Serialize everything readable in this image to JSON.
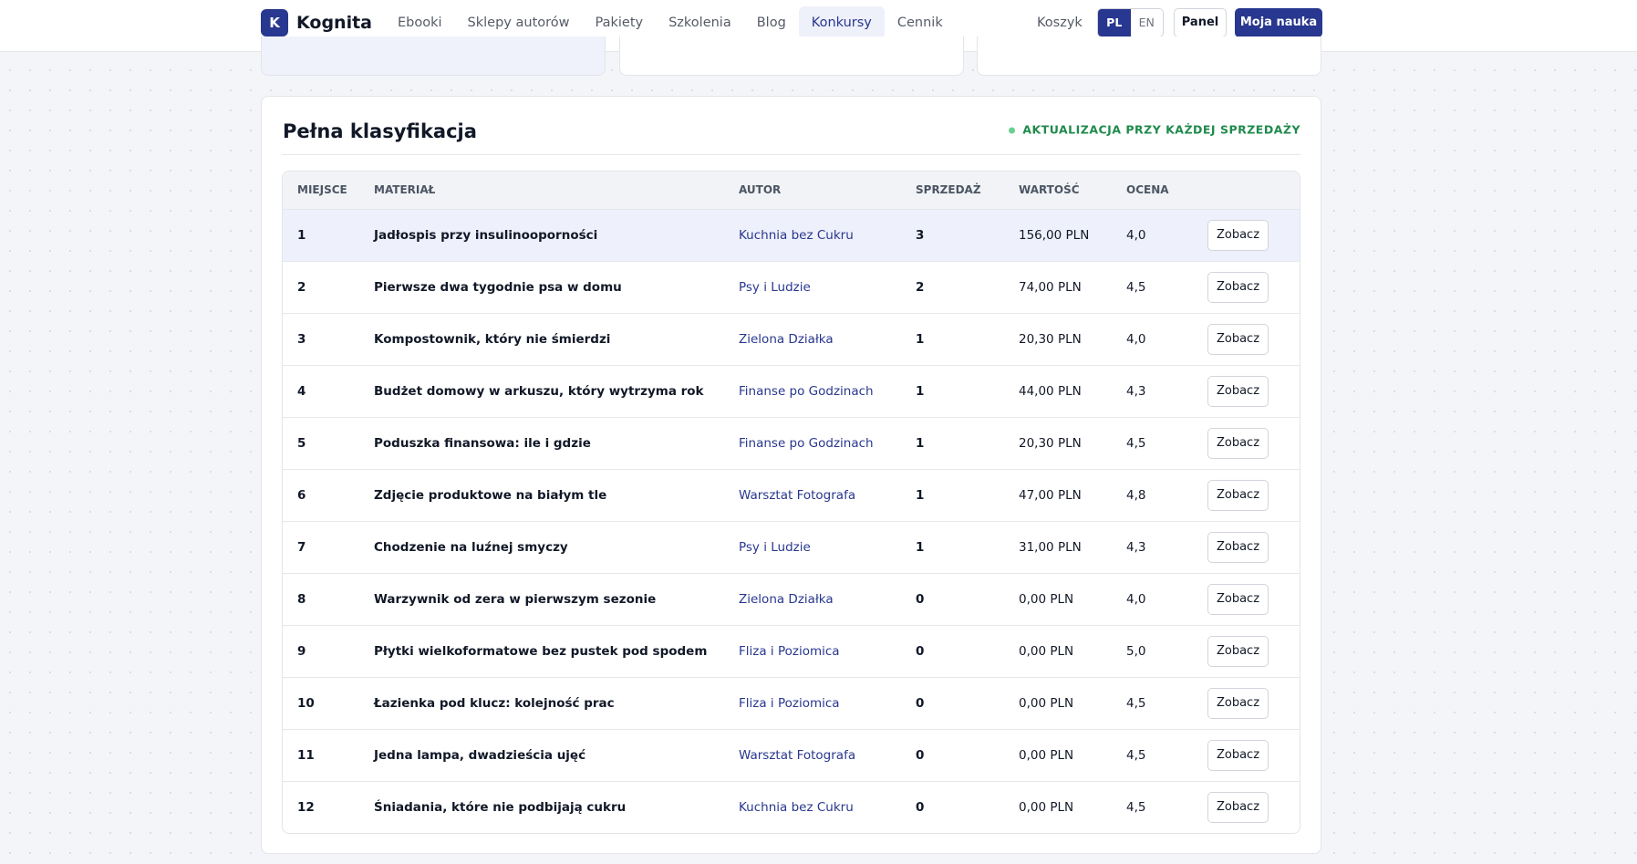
{
  "nav": {
    "logo_letter": "K",
    "brand": "Kognita",
    "links": [
      "Ebooki",
      "Sklepy autorów",
      "Pakiety",
      "Szkolenia",
      "Blog",
      "Konkursy",
      "Cennik"
    ],
    "active_index": 5,
    "cart": "Koszyk",
    "languages": [
      "PL",
      "EN"
    ],
    "panel": "Panel",
    "cta": "Moja nauka"
  },
  "ranking": {
    "title": "Pełna klasyfikacja",
    "status": "AKTUALIZACJA PRZY KAŻDEJ SPRZEDAŻY",
    "columns": [
      "MIEJSCE",
      "MATERIAŁ",
      "AUTOR",
      "SPRZEDAŻ",
      "WARTOŚĆ",
      "OCENA"
    ],
    "rows": [
      [
        "1",
        "Jadłospis przy insulinooporności",
        "Kuchnia bez Cukru",
        "3",
        "156,00 PLN",
        "4,0",
        "Zobacz"
      ],
      [
        "2",
        "Pierwsze dwa tygodnie psa w domu",
        "Psy i Ludzie",
        "2",
        "74,00 PLN",
        "4,5",
        "Zobacz"
      ],
      [
        "3",
        "Kompostownik, który nie śmierdzi",
        "Zielona Działka",
        "1",
        "20,30 PLN",
        "4,0",
        "Zobacz"
      ],
      [
        "4",
        "Budżet domowy w arkuszu, który wytrzyma rok",
        "Finanse po Godzinach",
        "1",
        "44,00 PLN",
        "4,3",
        "Zobacz"
      ],
      [
        "5",
        "Poduszka finansowa: ile i gdzie",
        "Finanse po Godzinach",
        "1",
        "20,30 PLN",
        "4,5",
        "Zobacz"
      ],
      [
        "6",
        "Zdjęcie produktowe na białym tle",
        "Warsztat Fotografa",
        "1",
        "47,00 PLN",
        "4,8",
        "Zobacz"
      ],
      [
        "7",
        "Chodzenie na luźnej smyczy",
        "Psy i Ludzie",
        "1",
        "31,00 PLN",
        "4,3",
        "Zobacz"
      ],
      [
        "8",
        "Warzywnik od zera w pierwszym sezonie",
        "Zielona Działka",
        "0",
        "0,00 PLN",
        "4,0",
        "Zobacz"
      ],
      [
        "9",
        "Płytki wielkoformatowe bez pustek pod spodem",
        "Fliza i Poziomica",
        "0",
        "0,00 PLN",
        "5,0",
        "Zobacz"
      ],
      [
        "10",
        "Łazienka pod klucz: kolejność prac",
        "Fliza i Poziomica",
        "0",
        "0,00 PLN",
        "4,5",
        "Zobacz"
      ],
      [
        "11",
        "Jedna lampa, dwadzieścia ujęć",
        "Warsztat Fotografa",
        "0",
        "0,00 PLN",
        "4,5",
        "Zobacz"
      ],
      [
        "12",
        "Śniadania, które nie podbijają cukru",
        "Kuchnia bez Cukru",
        "0",
        "0,00 PLN",
        "4,5",
        "Zobacz"
      ]
    ]
  }
}
